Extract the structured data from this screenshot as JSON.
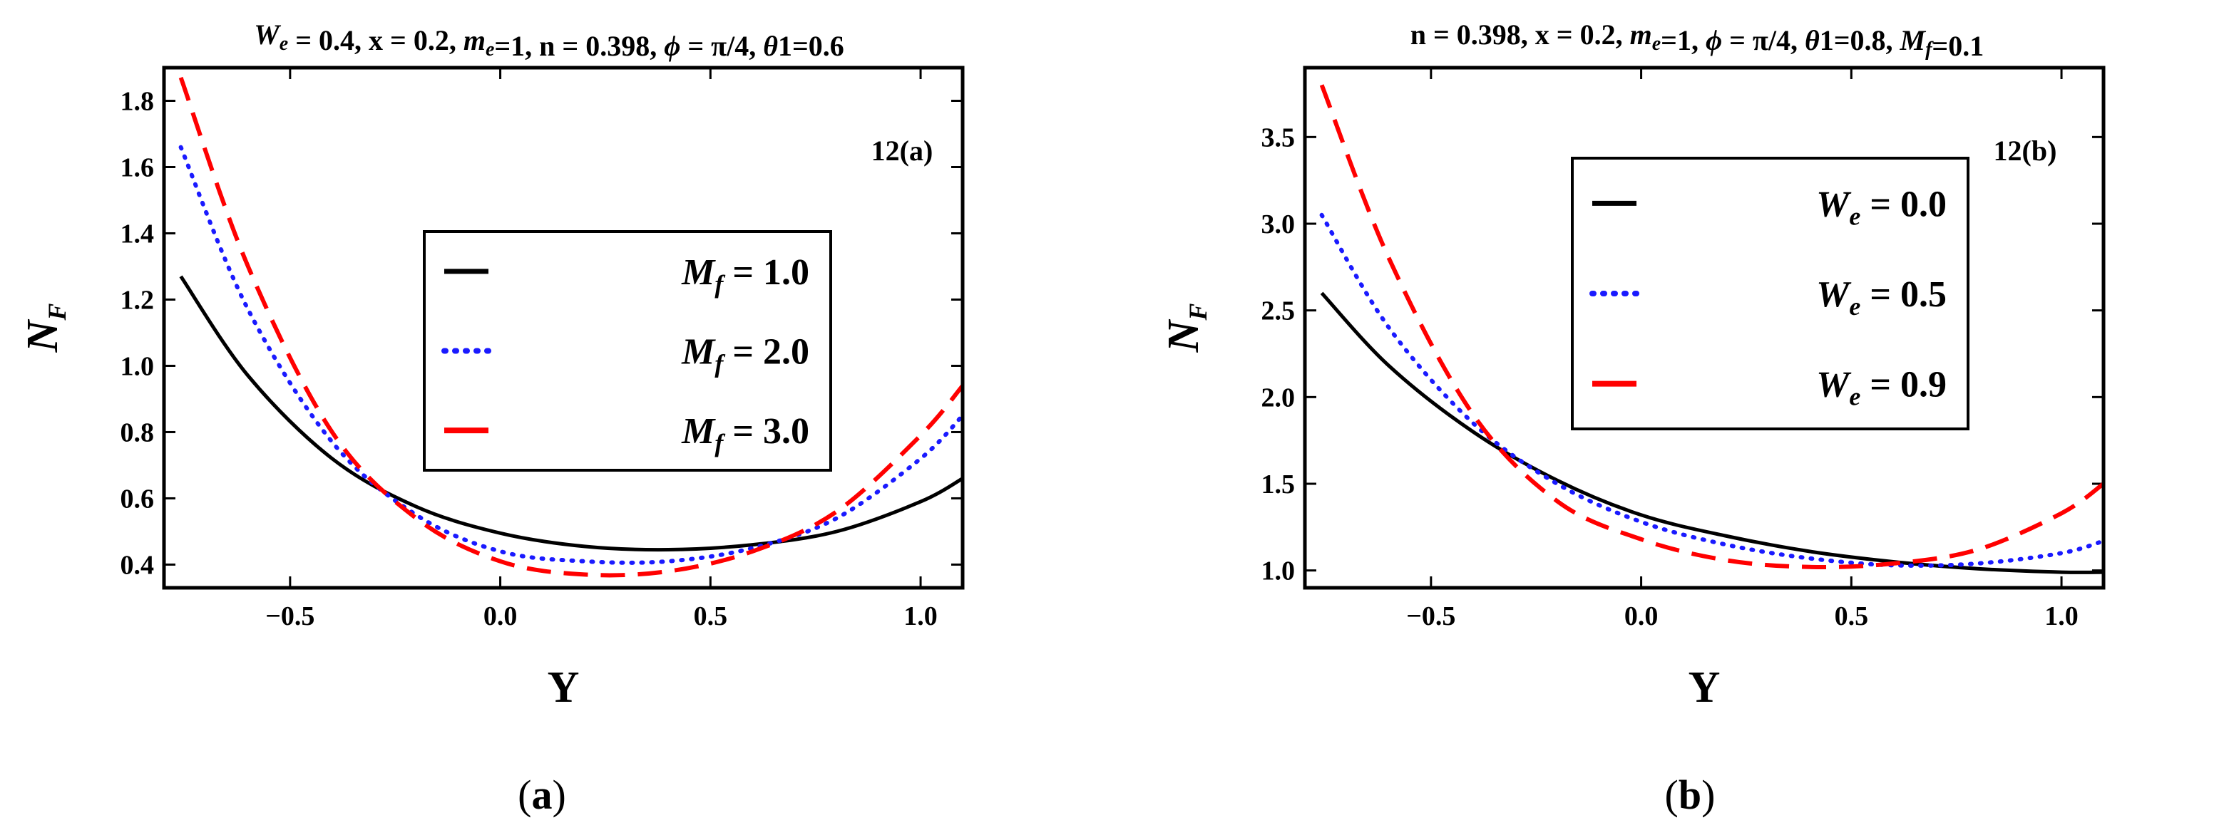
{
  "chart_data": [
    {
      "id": "a",
      "type": "line",
      "title": "W_e = 0.4, x = 0.2, m_e=1, n = 0.398, ϕ = π/4, θ1=0.6",
      "title_parts": [
        {
          "t": "W",
          "i": true
        },
        {
          "t": "e",
          "sub": true,
          "i": true
        },
        {
          "t": " = 0.4, x = 0.2, "
        },
        {
          "t": "m",
          "i": true
        },
        {
          "t": "e",
          "sub": true,
          "i": true
        },
        {
          "t": "=1, n = 0.398, "
        },
        {
          "t": "ϕ",
          "i": true
        },
        {
          "t": " = π/4, "
        },
        {
          "t": "θ",
          "i": true
        },
        {
          "t": "1=0.6"
        }
      ],
      "panel_tag": "12(a)",
      "xlabel": "Y",
      "ylabel_main": "N",
      "ylabel_sub": "F",
      "xlim": [
        -0.8,
        1.1
      ],
      "ylim": [
        0.33,
        1.9
      ],
      "xticks": [
        -0.5,
        0.0,
        0.5,
        1.0
      ],
      "xtick_labels": [
        "−0.5",
        "0.0",
        "0.5",
        "1.0"
      ],
      "yticks": [
        0.4,
        0.6,
        0.8,
        1.0,
        1.2,
        1.4,
        1.6,
        1.8
      ],
      "ytick_labels": [
        "0.4",
        "0.6",
        "0.8",
        "1.0",
        "1.2",
        "1.4",
        "1.6",
        "1.8"
      ],
      "legend_position": "center-right",
      "legend_label_main": "M",
      "legend_label_sub": "f",
      "x": [
        -0.76,
        -0.6,
        -0.4,
        -0.2,
        0.0,
        0.2,
        0.4,
        0.6,
        0.8,
        1.0,
        1.1
      ],
      "series": [
        {
          "legend_value": "1.0",
          "style": "solid",
          "color": "#000000",
          "values": [
            1.27,
            0.97,
            0.72,
            0.575,
            0.495,
            0.455,
            0.445,
            0.46,
            0.5,
            0.59,
            0.66
          ]
        },
        {
          "legend_value": "2.0",
          "style": "dotted",
          "color": "#1a1aff",
          "values": [
            1.66,
            1.17,
            0.77,
            0.55,
            0.44,
            0.41,
            0.41,
            0.45,
            0.54,
            0.72,
            0.85
          ]
        },
        {
          "legend_value": "3.0",
          "style": "dashed",
          "color": "#ff0000",
          "values": [
            1.87,
            1.3,
            0.8,
            0.54,
            0.41,
            0.37,
            0.38,
            0.44,
            0.56,
            0.79,
            0.94
          ]
        }
      ]
    },
    {
      "id": "b",
      "type": "line",
      "title": "n = 0.398, x = 0.2, m_e=1, ϕ = π/4, θ1=0.8, M_f=0.1",
      "title_parts": [
        {
          "t": "n = 0.398, x = 0.2, "
        },
        {
          "t": "m",
          "i": true
        },
        {
          "t": "e",
          "sub": true,
          "i": true
        },
        {
          "t": "=1, "
        },
        {
          "t": "ϕ",
          "i": true
        },
        {
          "t": " = π/4, "
        },
        {
          "t": "θ",
          "i": true
        },
        {
          "t": "1=0.8, "
        },
        {
          "t": "M",
          "i": true
        },
        {
          "t": "f",
          "sub": true,
          "i": true
        },
        {
          "t": "=0.1"
        }
      ],
      "panel_tag": "12(b)",
      "xlabel": "Y",
      "ylabel_main": "N",
      "ylabel_sub": "F",
      "xlim": [
        -0.8,
        1.1
      ],
      "ylim": [
        0.9,
        3.9
      ],
      "xticks": [
        -0.5,
        0.0,
        0.5,
        1.0
      ],
      "xtick_labels": [
        "−0.5",
        "0.0",
        "0.5",
        "1.0"
      ],
      "yticks": [
        1.0,
        1.5,
        2.0,
        2.5,
        3.0,
        3.5
      ],
      "ytick_labels": [
        "1.0",
        "1.5",
        "2.0",
        "2.5",
        "3.0",
        "3.5"
      ],
      "legend_position": "top-center",
      "legend_label_main": "W",
      "legend_label_sub": "e",
      "x": [
        -0.76,
        -0.6,
        -0.4,
        -0.2,
        0.0,
        0.2,
        0.4,
        0.6,
        0.8,
        1.0,
        1.1
      ],
      "series": [
        {
          "legend_value": "0.0",
          "style": "solid",
          "color": "#000000",
          "values": [
            2.6,
            2.18,
            1.8,
            1.52,
            1.32,
            1.2,
            1.11,
            1.05,
            1.01,
            0.99,
            0.99
          ]
        },
        {
          "legend_value": "0.5",
          "style": "dotted",
          "color": "#1a1aff",
          "values": [
            3.05,
            2.4,
            1.85,
            1.5,
            1.28,
            1.15,
            1.07,
            1.03,
            1.04,
            1.1,
            1.17
          ]
        },
        {
          "legend_value": "0.9",
          "style": "dashed",
          "color": "#ff0000",
          "values": [
            3.8,
            2.8,
            1.9,
            1.4,
            1.18,
            1.06,
            1.02,
            1.04,
            1.12,
            1.33,
            1.5
          ]
        }
      ]
    }
  ],
  "captions": [
    {
      "open": "(",
      "letter": "a",
      "close": ")"
    },
    {
      "open": "(",
      "letter": "b",
      "close": ")"
    }
  ]
}
